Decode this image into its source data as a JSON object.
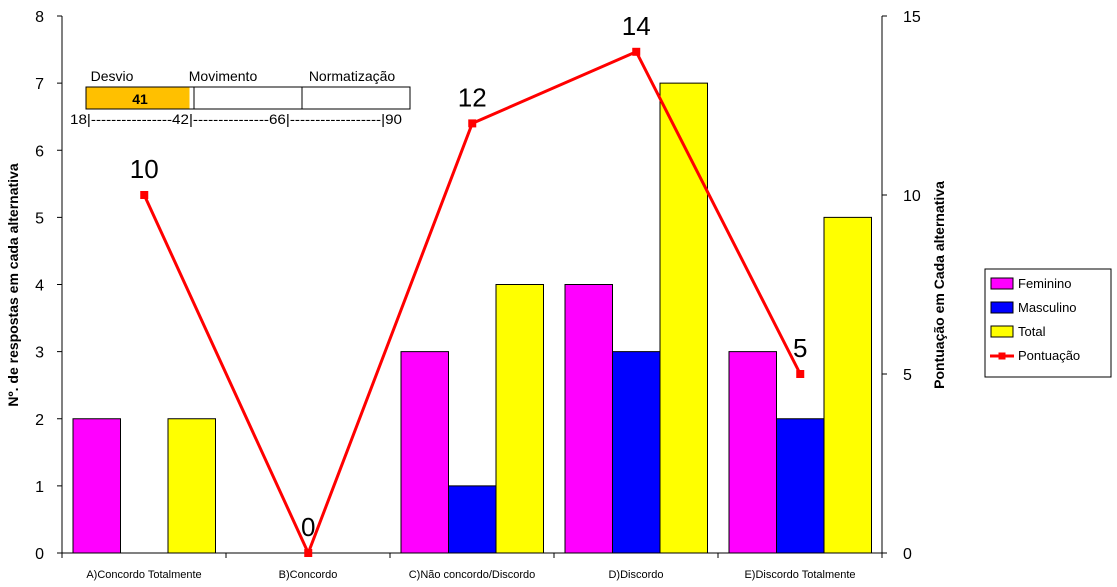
{
  "chart_data": {
    "type": "bar",
    "categories": [
      "A)Concordo Totalmente",
      "B)Concordo",
      "C)Não concordo/Discordo",
      "D)Discordo",
      "E)Discordo Totalmente"
    ],
    "series": [
      {
        "name": "Feminino",
        "type": "bar",
        "axis": "left",
        "color": "#FF00FF",
        "values": [
          2,
          0,
          3,
          4,
          3
        ]
      },
      {
        "name": "Masculino",
        "type": "bar",
        "axis": "left",
        "color": "#0000FF",
        "values": [
          0,
          0,
          1,
          3,
          2
        ]
      },
      {
        "name": "Total",
        "type": "bar",
        "axis": "left",
        "color": "#FFFF00",
        "values": [
          2,
          0,
          4,
          7,
          5
        ]
      },
      {
        "name": "Pontuação",
        "type": "line",
        "axis": "right",
        "color": "#FF0000",
        "values": [
          10,
          0,
          12,
          14,
          5
        ]
      }
    ],
    "ylabel": "Nº. de respostas em cada alternativa",
    "ylabel_right": "Pontuação em Cada alternativa",
    "ylim": [
      0,
      8
    ],
    "ylim_right": [
      0,
      15
    ],
    "yticks": [
      "0",
      "1",
      "2",
      "3",
      "4",
      "5",
      "6",
      "7",
      "8"
    ],
    "yticks_right": [
      "0",
      "5",
      "10",
      "15"
    ],
    "data_labels": [
      "10",
      "0",
      "12",
      "14",
      "5"
    ],
    "legend_position": "right",
    "grid": false,
    "inset": {
      "labels": [
        "Desvio",
        "Movimento",
        "Normatização"
      ],
      "value": 41,
      "value_label": "41",
      "range": [
        18,
        90
      ],
      "scale_text": "18|----------------42|---------------66|------------------|90",
      "fill_color": "#FFC000"
    }
  }
}
